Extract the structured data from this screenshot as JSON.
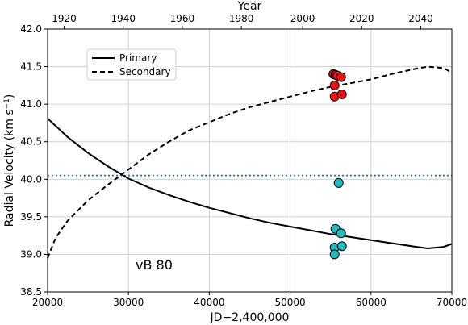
{
  "chart_data": {
    "type": "line",
    "xlabel": "JD−2,400,000",
    "ylabel": "Radial Velocity (km s",
    "ylabel_sup": "−1",
    "ylabel_end": ")",
    "top_xlabel": "Year",
    "xlim": [
      20000,
      70000
    ],
    "ylim": [
      38.5,
      42.0
    ],
    "xticks": [
      20000,
      30000,
      40000,
      50000,
      60000,
      70000
    ],
    "yticks": [
      38.5,
      39.0,
      39.5,
      40.0,
      40.5,
      41.0,
      41.5,
      42.0
    ],
    "top_ticks": [
      {
        "label": "1920",
        "jd": 22050
      },
      {
        "label": "1940",
        "jd": 29355
      },
      {
        "label": "1960",
        "jd": 36660
      },
      {
        "label": "1980",
        "jd": 43964
      },
      {
        "label": "2000",
        "jd": 51545
      },
      {
        "label": "2020",
        "jd": 58850
      },
      {
        "label": "2040",
        "jd": 66155
      }
    ],
    "grid": true,
    "legend": {
      "placement": "upper-left",
      "entries": [
        {
          "label": "Primary",
          "style": "solid"
        },
        {
          "label": "Secondary",
          "style": "dashed"
        }
      ]
    },
    "annotation": "vB 80",
    "systemic_velocity": 40.05,
    "series": [
      {
        "name": "Primary",
        "style": "solid",
        "color": "#000000",
        "x": [
          20000,
          22500,
          25000,
          27500,
          30000,
          32500,
          35000,
          37500,
          40000,
          42500,
          45000,
          47500,
          50000,
          52500,
          55000,
          57500,
          60000,
          62500,
          65000,
          67000,
          69000,
          70000
        ],
        "y": [
          40.81,
          40.56,
          40.35,
          40.17,
          40.01,
          39.89,
          39.79,
          39.7,
          39.62,
          39.55,
          39.48,
          39.42,
          39.37,
          39.32,
          39.27,
          39.23,
          39.19,
          39.15,
          39.11,
          39.08,
          39.1,
          39.14
        ]
      },
      {
        "name": "Secondary",
        "style": "dashed",
        "color": "#000000",
        "x": [
          20000,
          21000,
          22500,
          25000,
          27500,
          30000,
          32500,
          35000,
          37500,
          40000,
          42500,
          45000,
          47500,
          50000,
          52500,
          55000,
          57500,
          60000,
          62500,
          65000,
          67000,
          69000,
          70000
        ],
        "y": [
          38.95,
          39.22,
          39.45,
          39.72,
          39.93,
          40.13,
          40.33,
          40.5,
          40.65,
          40.76,
          40.87,
          40.96,
          41.03,
          41.1,
          41.17,
          41.23,
          41.28,
          41.33,
          41.4,
          41.46,
          41.5,
          41.48,
          41.42
        ]
      }
    ],
    "points": {
      "secondary": {
        "color": "#ee1111",
        "x": [
          55350,
          55600,
          55850,
          56300,
          55500,
          55500,
          56400
        ],
        "y": [
          41.4,
          41.39,
          41.38,
          41.36,
          41.25,
          41.1,
          41.13
        ]
      },
      "primary": {
        "color": "#22bbbb",
        "x": [
          56000,
          55600,
          56300,
          55500,
          56400,
          55500
        ],
        "y": [
          39.95,
          39.34,
          39.28,
          39.09,
          39.11,
          39.0
        ]
      }
    }
  }
}
